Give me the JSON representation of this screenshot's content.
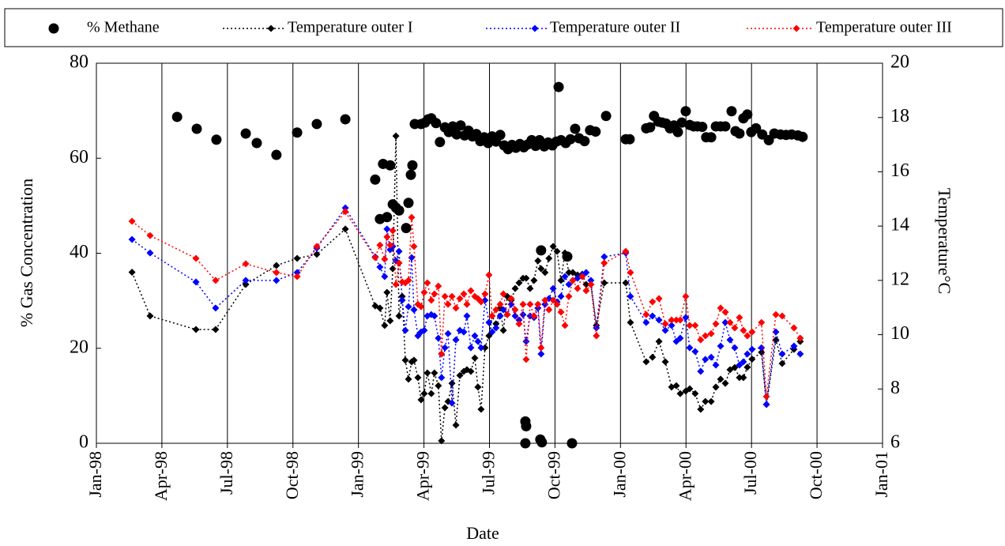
{
  "chart_data": {
    "type": "line",
    "x_label": "Date",
    "y_label": "% Gas Concentration",
    "y2_label": "Temperature°C",
    "xlim": [
      1998,
      2001
    ],
    "xticks": [
      {
        "value": 1998,
        "label": "Jan-98"
      },
      {
        "value": 1998.25,
        "label": "Apr-98"
      },
      {
        "value": 1998.5,
        "label": "Jul-98"
      },
      {
        "value": 1998.75,
        "label": "Oct-98"
      },
      {
        "value": 1999,
        "label": "Jan-99"
      },
      {
        "value": 1999.25,
        "label": "Apr-99"
      },
      {
        "value": 1999.5,
        "label": "Jul-99"
      },
      {
        "value": 1999.75,
        "label": "Oct-99"
      },
      {
        "value": 2000,
        "label": "Jan-00"
      },
      {
        "value": 2000.25,
        "label": "Apr-00"
      },
      {
        "value": 2000.5,
        "label": "Jul-00"
      },
      {
        "value": 2000.75,
        "label": "Oct-00"
      },
      {
        "value": 2001,
        "label": "Jan-01"
      }
    ],
    "ylim": [
      0,
      80
    ],
    "yticks": [
      0,
      20,
      40,
      60,
      80
    ],
    "y2lim": [
      6,
      20
    ],
    "y2ticks": [
      6,
      8,
      10,
      12,
      14,
      16,
      18,
      20
    ],
    "grid": "x",
    "legend": "top",
    "series": [
      {
        "name": "% Methane",
        "type": "scatter",
        "marker": "circle",
        "color": "#000000",
        "x": [
          1998.308,
          1998.383,
          1998.458,
          1998.57,
          1998.612,
          1998.687,
          1998.766,
          1998.841,
          1998.95,
          1999.064,
          1999.082,
          1999.094,
          1999.109,
          1999.121,
          1999.131,
          1999.143,
          1999.155,
          1999.182,
          1999.191,
          1999.2,
          1999.206,
          1999.215,
          1999.239,
          1999.254,
          1999.266,
          1999.278,
          1999.296,
          1999.311,
          1999.33,
          1999.345,
          1999.36,
          1999.375,
          1999.39,
          1999.405,
          1999.42,
          1999.435,
          1999.45,
          1999.465,
          1999.48,
          1999.495,
          1999.51,
          1999.525,
          1999.541,
          1999.556,
          1999.571,
          1999.586,
          1999.601,
          1999.616,
          1999.631,
          1999.637,
          1999.64,
          1999.637,
          1999.646,
          1999.661,
          1999.676,
          1999.691,
          1999.694,
          1999.697,
          1999.7,
          1999.709,
          1999.724,
          1999.74,
          1999.755,
          1999.764,
          1999.773,
          1999.791,
          1999.797,
          1999.809,
          1999.815,
          1999.827,
          1999.842,
          1999.863,
          1999.884,
          1999.905,
          1999.945,
          2000.02,
          2000.035,
          2000.098,
          2000.113,
          2000.128,
          2000.144,
          2000.159,
          2000.174,
          2000.189,
          2000.204,
          2000.219,
          2000.234,
          2000.249,
          2000.264,
          2000.279,
          2000.294,
          2000.312,
          2000.327,
          2000.346,
          2000.364,
          2000.382,
          2000.4,
          2000.424,
          2000.439,
          2000.454,
          2000.469,
          2000.484,
          2000.499,
          2000.517,
          2000.541,
          2000.566,
          2000.587,
          2000.611,
          2000.632,
          2000.653,
          2000.677,
          2000.695
        ],
        "values": [
          68.7,
          66.2,
          63.9,
          65.2,
          63.2,
          60.7,
          65.4,
          67.2,
          68.2,
          55.5,
          47.2,
          58.8,
          47.6,
          58.5,
          50.3,
          49.6,
          49.0,
          45.3,
          50.6,
          56.5,
          58.5,
          67.2,
          67.2,
          67.5,
          68.2,
          68.4,
          67.4,
          63.4,
          66.5,
          65.5,
          66.7,
          65.0,
          66.9,
          64.8,
          65.8,
          64.6,
          65.1,
          63.6,
          64.4,
          63.2,
          64.6,
          63.5,
          64.9,
          62.7,
          61.9,
          62.8,
          62.2,
          63.0,
          62.3,
          4.6,
          3.6,
          0.0,
          62.9,
          63.8,
          62.6,
          63.8,
          0.8,
          40.6,
          0.2,
          62.5,
          63.3,
          62.7,
          63.5,
          75.0,
          63.8,
          63.2,
          39.3,
          64.0,
          0.0,
          66.2,
          64.2,
          63.6,
          65.9,
          65.6,
          68.9,
          64.0,
          64.0,
          66.3,
          66.5,
          68.9,
          67.7,
          67.5,
          67.3,
          66.3,
          66.9,
          65.5,
          67.5,
          69.9,
          67.0,
          66.7,
          66.7,
          66.6,
          64.4,
          64.4,
          66.7,
          66.7,
          66.7,
          69.9,
          65.7,
          65.2,
          68.4,
          69.2,
          65.5,
          66.3,
          65.0,
          63.8,
          65.2,
          65.0,
          64.9,
          65.0,
          64.8,
          64.5
        ]
      },
      {
        "name": "Temperature outer I",
        "type": "line",
        "marker": "diamond",
        "color": "#000000",
        "axis": "y2",
        "x": [
          1998.136,
          1998.205,
          1998.38,
          1998.455,
          1998.57,
          1998.687,
          1998.766,
          1998.841,
          1998.95,
          1999.064,
          1999.082,
          1999.1,
          1999.109,
          1999.121,
          1999.131,
          1999.143,
          1999.155,
          1999.167,
          1999.179,
          1999.191,
          1999.203,
          1999.212,
          1999.227,
          1999.239,
          1999.251,
          1999.263,
          1999.278,
          1999.29,
          1999.305,
          1999.317,
          1999.33,
          1999.342,
          1999.357,
          1999.372,
          1999.387,
          1999.402,
          1999.414,
          1999.429,
          1999.444,
          1999.456,
          1999.468,
          1999.483,
          1999.498,
          1999.51,
          1999.525,
          1999.541,
          1999.553,
          1999.568,
          1999.583,
          1999.598,
          1999.613,
          1999.628,
          1999.64,
          1999.655,
          1999.67,
          1999.685,
          1999.697,
          1999.712,
          1999.727,
          1999.743,
          1999.758,
          1999.773,
          1999.788,
          1999.803,
          1999.818,
          1999.836,
          1999.854,
          1999.869,
          1999.887,
          1999.908,
          1999.938,
          2000.02,
          2000.038,
          2000.098,
          2000.122,
          2000.147,
          2000.171,
          2000.195,
          2000.213,
          2000.228,
          2000.249,
          2000.264,
          2000.285,
          2000.306,
          2000.324,
          2000.346,
          2000.364,
          2000.382,
          2000.4,
          2000.418,
          2000.436,
          2000.454,
          2000.469,
          2000.484,
          2000.502,
          2000.538,
          2000.557,
          2000.593,
          2000.617,
          2000.662,
          2000.686
        ],
        "values": [
          12.3,
          10.69,
          10.19,
          10.19,
          11.85,
          12.55,
          12.81,
          12.96,
          13.89,
          11.06,
          10.98,
          10.34,
          11.56,
          10.51,
          12.43,
          17.32,
          10.69,
          11.41,
          9.06,
          8.36,
          9.0,
          9.06,
          8.42,
          7.6,
          7.83,
          8.59,
          7.83,
          8.59,
          8.12,
          6.09,
          7.31,
          7.54,
          8.21,
          6.67,
          8.5,
          8.65,
          8.71,
          8.65,
          9.14,
          8.07,
          7.25,
          9.52,
          9.96,
          10.69,
          10.4,
          10.98,
          10.16,
          11.41,
          11.27,
          11.7,
          11.91,
          12.08,
          12.08,
          11.7,
          12.0,
          12.72,
          12.43,
          12.29,
          12.81,
          13.25,
          13.07,
          12.0,
          13.01,
          12.29,
          12.29,
          12.2,
          12.23,
          11.85,
          11.85,
          10.34,
          11.91,
          11.91,
          10.45,
          9.0,
          9.17,
          9.75,
          9.0,
          8.07,
          8.12,
          7.83,
          7.92,
          8.01,
          7.83,
          7.25,
          7.54,
          7.54,
          8.07,
          8.36,
          8.21,
          8.71,
          8.79,
          8.42,
          8.42,
          8.8,
          9.1,
          9.35,
          7.43,
          9.81,
          8.94,
          9.46,
          9.75
        ]
      },
      {
        "name": "Temperature outer II",
        "type": "line",
        "marker": "diamond",
        "color": "#0000ff",
        "axis": "y2",
        "x": [
          1998.136,
          1998.205,
          1998.38,
          1998.455,
          1998.57,
          1998.687,
          1998.766,
          1998.841,
          1998.95,
          1999.064,
          1999.082,
          1999.1,
          1999.109,
          1999.121,
          1999.131,
          1999.143,
          1999.155,
          1999.167,
          1999.179,
          1999.191,
          1999.203,
          1999.212,
          1999.227,
          1999.239,
          1999.251,
          1999.263,
          1999.278,
          1999.29,
          1999.305,
          1999.317,
          1999.33,
          1999.342,
          1999.357,
          1999.372,
          1999.387,
          1999.402,
          1999.414,
          1999.429,
          1999.444,
          1999.456,
          1999.468,
          1999.483,
          1999.498,
          1999.51,
          1999.525,
          1999.541,
          1999.553,
          1999.568,
          1999.583,
          1999.598,
          1999.613,
          1999.628,
          1999.64,
          1999.655,
          1999.67,
          1999.685,
          1999.697,
          1999.712,
          1999.727,
          1999.743,
          1999.758,
          1999.773,
          1999.788,
          1999.803,
          1999.818,
          1999.836,
          1999.854,
          1999.869,
          1999.887,
          1999.908,
          1999.938,
          2000.02,
          2000.038,
          2000.098,
          2000.122,
          2000.147,
          2000.171,
          2000.195,
          2000.213,
          2000.228,
          2000.249,
          2000.264,
          2000.285,
          2000.306,
          2000.324,
          2000.346,
          2000.364,
          2000.382,
          2000.4,
          2000.418,
          2000.436,
          2000.454,
          2000.469,
          2000.484,
          2000.502,
          2000.538,
          2000.557,
          2000.593,
          2000.617,
          2000.662,
          2000.686
        ],
        "values": [
          13.51,
          13.01,
          11.94,
          10.98,
          12.0,
          12.0,
          12.29,
          13.19,
          14.67,
          12.87,
          12.49,
          12.14,
          13.89,
          13.13,
          13.25,
          12.72,
          13.07,
          11.27,
          10.16,
          11.03,
          12.84,
          10.92,
          9.96,
          10.1,
          10.16,
          10.69,
          10.74,
          10.69,
          9.87,
          8.42,
          9.52,
          10.04,
          7.48,
          9.81,
          10.16,
          10.1,
          10.69,
          9.52,
          9.96,
          9.75,
          9.52,
          11.27,
          10.45,
          10.1,
          10.25,
          10.69,
          10.92,
          10.74,
          11.12,
          10.69,
          10.54,
          10.74,
          9.75,
          10.69,
          10.63,
          10.98,
          9.29,
          11.12,
          11.33,
          11.7,
          11.21,
          11.41,
          12.14,
          11.85,
          12.0,
          12.08,
          12.2,
          12.29,
          12.0,
          10.25,
          12.87,
          13.01,
          11.41,
          10.45,
          10.69,
          10.54,
          10.16,
          10.34,
          9.75,
          9.87,
          10.63,
          9.52,
          9.38,
          8.65,
          9.09,
          9.17,
          8.88,
          9.58,
          10.45,
          9.81,
          9.52,
          8.88,
          9.0,
          9.29,
          9.46,
          9.52,
          7.43,
          10.1,
          9.29,
          9.58,
          9.29
        ]
      },
      {
        "name": "Temperature outer III",
        "type": "line",
        "marker": "diamond",
        "color": "#ff0000",
        "axis": "y2",
        "x": [
          1998.136,
          1998.205,
          1998.38,
          1998.455,
          1998.57,
          1998.687,
          1998.766,
          1998.841,
          1998.95,
          1999.064,
          1999.082,
          1999.1,
          1999.109,
          1999.121,
          1999.131,
          1999.143,
          1999.155,
          1999.167,
          1999.179,
          1999.191,
          1999.203,
          1999.212,
          1999.227,
          1999.239,
          1999.251,
          1999.263,
          1999.278,
          1999.29,
          1999.305,
          1999.317,
          1999.33,
          1999.342,
          1999.357,
          1999.372,
          1999.387,
          1999.402,
          1999.414,
          1999.429,
          1999.444,
          1999.456,
          1999.468,
          1999.483,
          1999.498,
          1999.51,
          1999.525,
          1999.541,
          1999.553,
          1999.568,
          1999.583,
          1999.598,
          1999.613,
          1999.628,
          1999.64,
          1999.655,
          1999.67,
          1999.685,
          1999.697,
          1999.712,
          1999.727,
          1999.743,
          1999.758,
          1999.773,
          1999.788,
          1999.803,
          1999.818,
          1999.836,
          1999.854,
          1999.869,
          1999.887,
          1999.908,
          1999.938,
          2000.02,
          2000.038,
          2000.098,
          2000.122,
          2000.147,
          2000.171,
          2000.195,
          2000.213,
          2000.228,
          2000.249,
          2000.264,
          2000.285,
          2000.306,
          2000.324,
          2000.346,
          2000.364,
          2000.382,
          2000.4,
          2000.418,
          2000.436,
          2000.454,
          2000.469,
          2000.484,
          2000.502,
          2000.538,
          2000.557,
          2000.593,
          2000.617,
          2000.662,
          2000.686
        ],
        "values": [
          14.18,
          13.65,
          12.81,
          12.0,
          12.61,
          12.29,
          12.14,
          13.25,
          14.53,
          12.84,
          13.3,
          12.78,
          13.6,
          13.3,
          13.83,
          11.85,
          12.64,
          11.94,
          11.91,
          12.0,
          14.32,
          13.25,
          11.12,
          11.03,
          11.56,
          11.91,
          11.27,
          11.5,
          11.79,
          9.29,
          11.41,
          11.12,
          11.41,
          10.98,
          11.33,
          11.5,
          11.12,
          11.62,
          11.41,
          11.33,
          11.21,
          11.5,
          12.2,
          10.69,
          10.92,
          11.12,
          11.5,
          10.74,
          11.33,
          10.92,
          10.4,
          11.12,
          9.09,
          11.12,
          10.69,
          11.12,
          9.52,
          11.27,
          10.92,
          11.27,
          11.12,
          10.83,
          10.34,
          11.41,
          12.0,
          11.7,
          12.14,
          11.62,
          11.85,
          9.96,
          12.64,
          13.07,
          12.29,
          10.74,
          11.21,
          11.33,
          10.4,
          10.54,
          10.54,
          10.54,
          11.41,
          10.34,
          10.34,
          9.81,
          9.96,
          10.04,
          10.4,
          10.98,
          10.83,
          10.45,
          10.25,
          10.63,
          10.16,
          9.96,
          10.1,
          10.45,
          7.72,
          10.74,
          10.69,
          10.25,
          9.87
        ]
      }
    ]
  }
}
